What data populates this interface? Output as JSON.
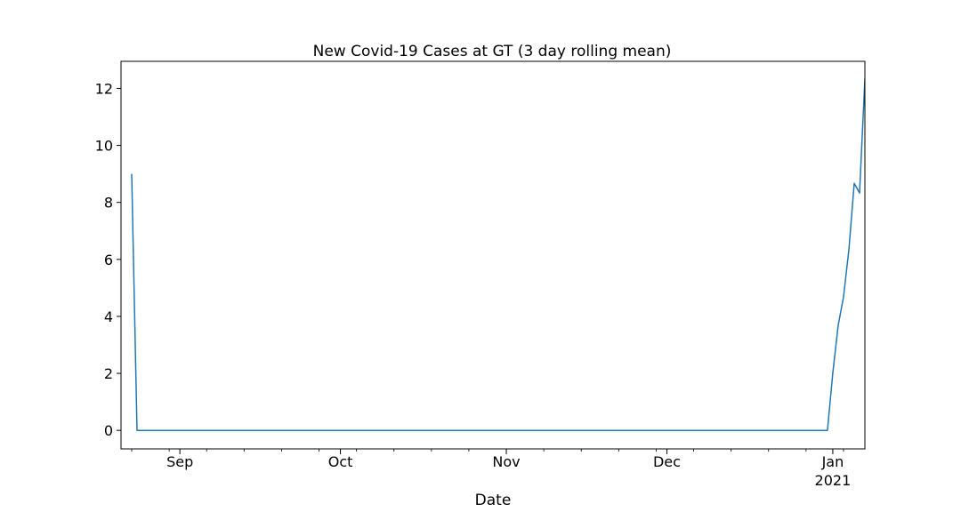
{
  "chart_data": {
    "type": "line",
    "title": "New Covid-19 Cases at GT (3 day rolling mean)",
    "xlabel": "Date",
    "ylabel": "",
    "x_axis_type": "date",
    "xlim": [
      "2020-08-21",
      "2021-01-07"
    ],
    "ylim": [
      -0.65,
      12.95
    ],
    "y_ticks": [
      0,
      2,
      4,
      6,
      8,
      10,
      12
    ],
    "x_major_ticks": [
      {
        "date": "2020-09-01",
        "label": "Sep"
      },
      {
        "date": "2020-10-01",
        "label": "Oct"
      },
      {
        "date": "2020-11-01",
        "label": "Nov"
      },
      {
        "date": "2020-12-01",
        "label": "Dec"
      },
      {
        "date": "2021-01-01",
        "label": "Jan",
        "sublabel": "2021"
      }
    ],
    "grid": false,
    "legend": "none",
    "series": [
      {
        "color": "#1f77b4",
        "points": [
          [
            "2020-08-23",
            9.0
          ],
          [
            "2020-08-24",
            0.0
          ],
          [
            "2020-12-31",
            0.0
          ],
          [
            "2021-01-01",
            2.0
          ],
          [
            "2021-01-02",
            3.67
          ],
          [
            "2021-01-03",
            4.67
          ],
          [
            "2021-01-04",
            6.33
          ],
          [
            "2021-01-05",
            8.67
          ],
          [
            "2021-01-06",
            8.33
          ],
          [
            "2021-01-07",
            12.33
          ],
          [
            "2021-01-08",
            11.0
          ]
        ]
      }
    ]
  }
}
